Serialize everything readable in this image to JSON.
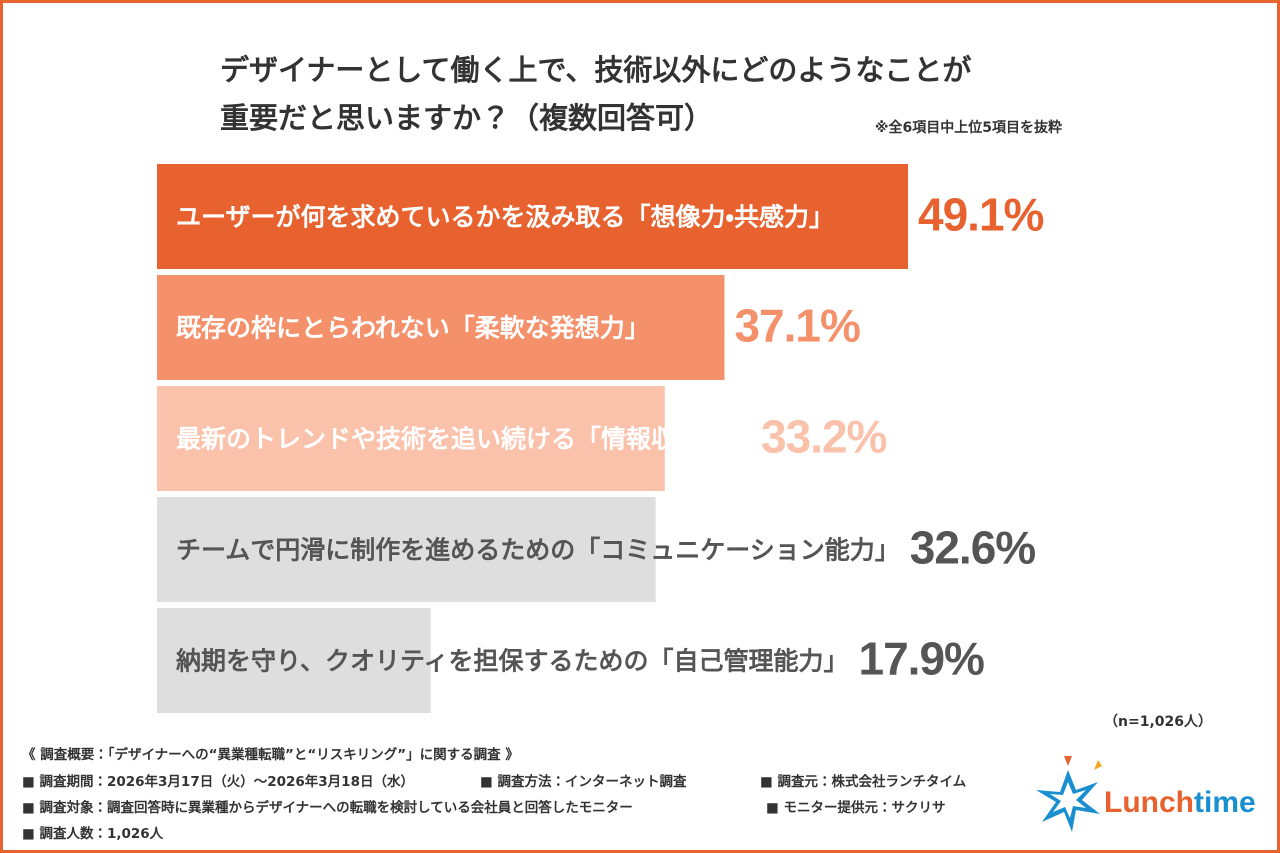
{
  "chart_data": {
    "type": "bar",
    "orientation": "horizontal",
    "title": [
      "デザイナーとして働く上で、技術以外にどのようなことが",
      "重要だと思いますか？（複数回答可）"
    ],
    "note": "※全6項目中上位5項目を抜粋",
    "sample": "（n=1,026人）",
    "categories": [
      "ユーザーが何を求めているかを汲み取る「想像力・共感力」",
      "既存の枠にとらわれない「柔軟な発想力」",
      "最新のトレンドや技術を追い続ける「情報収集力」",
      "チームで円滑に制作を進めるための「コミュニケーション能力」",
      "納期を守り、クオリティを担保するための「自己管理能力」"
    ],
    "values": [
      49.1,
      37.1,
      33.2,
      32.6,
      17.9
    ],
    "value_labels": [
      "49.1%",
      "37.1%",
      "33.2%",
      "32.6%",
      "17.9%"
    ],
    "colors": [
      "#e8622f",
      "#f4906a",
      "#fbc2ab",
      "#dedede",
      "#dedede"
    ],
    "category_label_colors": [
      "#ffffff",
      "#ffffff",
      "#ffffff",
      "#555555",
      "#555555"
    ],
    "value_label_colors": [
      "#e8622f",
      "#f4906a",
      "#fbc2ab",
      "#555555",
      "#555555"
    ]
  },
  "footer": {
    "overview": "《 調査概要：「デザイナーへの“異業種転職”と“リスキリング”」に関する調査 》",
    "lines": [
      [
        "■ 調査期間：2026年3月17日（火）〜2026年3月18日（水）",
        "■ 調査方法：インターネット調査",
        "■ 調査元：株式会社ランチタイム"
      ],
      [
        "■ 調査対象：調査回答時に異業種からデザイナーへの転職を検討している会社員と回答したモニター",
        "■ モニター提供元：サクリサ"
      ],
      [
        "■ 調査人数：1,026人"
      ]
    ]
  },
  "logo": {
    "left": "Lunch",
    "right": "time"
  }
}
